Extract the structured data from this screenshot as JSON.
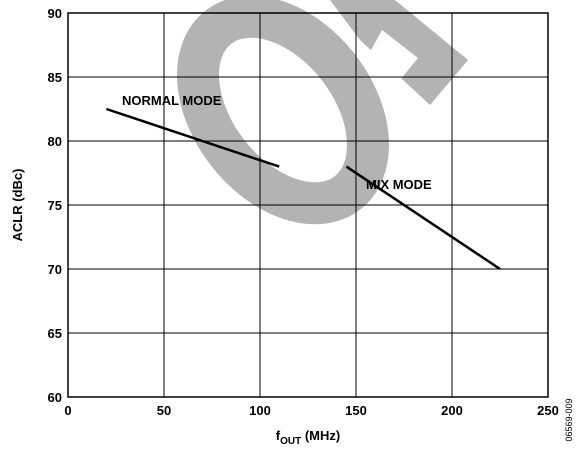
{
  "chart_data": {
    "type": "line",
    "y_label": "ACLR (dBc)",
    "x_label": {
      "symbol": "f",
      "subscript": "OUT",
      "unit": " (MHz)"
    },
    "figure_code": "06569-009",
    "xlim": [
      0,
      250
    ],
    "xticks": [
      0,
      50,
      100,
      150,
      200,
      250
    ],
    "ylim": [
      60,
      90
    ],
    "yticks": [
      60,
      65,
      70,
      75,
      80,
      85,
      90
    ],
    "grid": true,
    "series": [
      {
        "name": "NORMAL MODE",
        "color": "#000000",
        "x": [
          20,
          110
        ],
        "values": [
          82.5,
          78
        ]
      },
      {
        "name": "MIX MODE",
        "color": "#000000",
        "x": [
          145,
          225
        ],
        "values": [
          78,
          70
        ]
      }
    ]
  }
}
